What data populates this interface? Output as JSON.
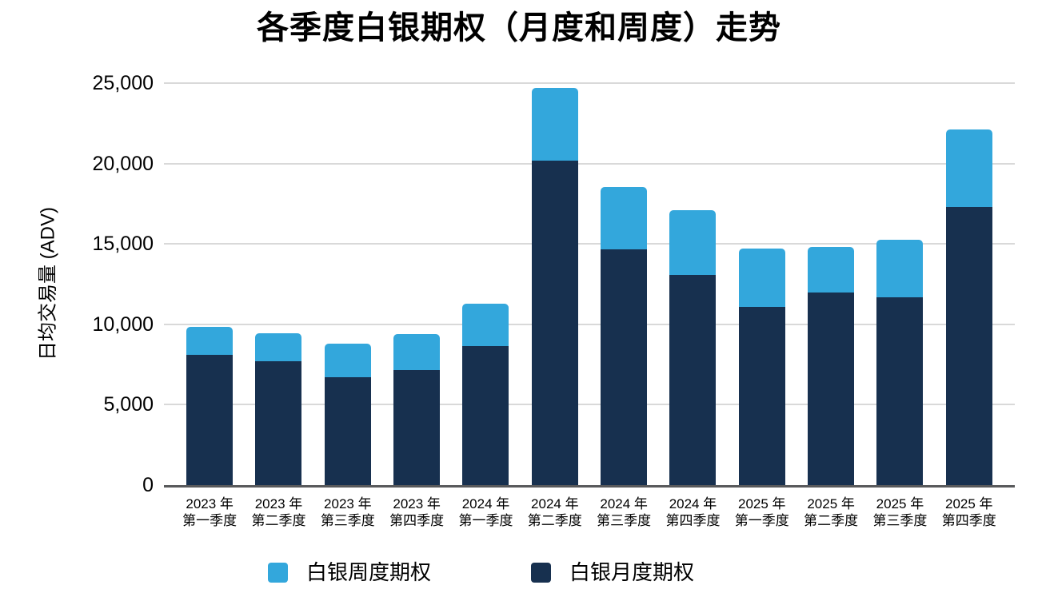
{
  "title": "各季度白银期权（月度和周度）走势",
  "colors": {
    "weekly": "#33A7DC",
    "monthly": "#17304F",
    "gridline": "#D9D9D9",
    "axis_line": "#58595B",
    "text": "#000000"
  },
  "chart_data": {
    "type": "bar",
    "stacked": true,
    "title": "各季度白银期权（月度和周度）走势",
    "xlabel": "",
    "ylabel": "日均交易量 (ADV)",
    "ylim": [
      0,
      25000
    ],
    "yticks": [
      0,
      5000,
      10000,
      15000,
      20000,
      25000
    ],
    "ytick_labels": [
      "0",
      "5,000",
      "10,000",
      "15,000",
      "20,000",
      "25,000"
    ],
    "grid": true,
    "legend_position": "bottom",
    "categories": [
      {
        "line1": "2023 年",
        "line2": "第一季度"
      },
      {
        "line1": "2023 年",
        "line2": "第二季度"
      },
      {
        "line1": "2023 年",
        "line2": "第三季度"
      },
      {
        "line1": "2023 年",
        "line2": "第四季度"
      },
      {
        "line1": "2024 年",
        "line2": "第一季度"
      },
      {
        "line1": "2024 年",
        "line2": "第二季度"
      },
      {
        "line1": "2024 年",
        "line2": "第三季度"
      },
      {
        "line1": "2024 年",
        "line2": "第四季度"
      },
      {
        "line1": "2025 年",
        "line2": "第一季度"
      },
      {
        "line1": "2025 年",
        "line2": "第二季度"
      },
      {
        "line1": "2025 年",
        "line2": "第三季度"
      },
      {
        "line1": "2025 年",
        "line2": "第四季度"
      }
    ],
    "series": [
      {
        "name": "白银周度期权",
        "role": "weekly",
        "color": "#33A7DC",
        "values": [
          1750,
          1750,
          2100,
          2250,
          2650,
          4500,
          3900,
          4050,
          3600,
          2800,
          3550,
          4800
        ]
      },
      {
        "name": "白银月度期权",
        "role": "monthly",
        "color": "#17304F",
        "values": [
          8100,
          7700,
          6700,
          7150,
          8650,
          20200,
          14650,
          13050,
          11100,
          12000,
          11700,
          17300
        ]
      }
    ]
  }
}
